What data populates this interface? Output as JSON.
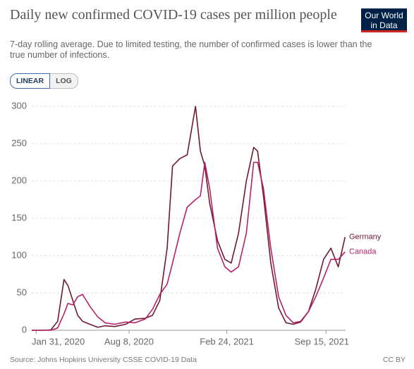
{
  "logo": "Our World in Data",
  "controls": [
    "LINEAR",
    "LOG"
  ],
  "chart_data": {
    "type": "line",
    "title": "Daily new confirmed COVID-19 cases per million people",
    "subtitle": "7-day rolling average. Due to limited testing, the number of confirmed cases is lower than the true number of infections.",
    "source": "Source: Johns Hopkins University CSSE COVID-19 Data",
    "license": "CC BY",
    "log_scale": false,
    "grid": true,
    "x": [
      "2020-01-22",
      "2020-02-15",
      "2020-03-01",
      "2020-03-15",
      "2020-03-28",
      "2020-04-05",
      "2020-04-15",
      "2020-04-25",
      "2020-05-05",
      "2020-05-20",
      "2020-06-05",
      "2020-06-20",
      "2020-07-10",
      "2020-08-01",
      "2020-08-20",
      "2020-09-10",
      "2020-09-25",
      "2020-10-10",
      "2020-10-25",
      "2020-11-05",
      "2020-11-20",
      "2020-12-05",
      "2020-12-22",
      "2021-01-01",
      "2021-01-10",
      "2021-01-20",
      "2021-02-05",
      "2021-02-20",
      "2021-03-05",
      "2021-03-20",
      "2021-04-05",
      "2021-04-20",
      "2021-04-28",
      "2021-05-10",
      "2021-05-25",
      "2021-06-10",
      "2021-06-25",
      "2021-07-10",
      "2021-07-25",
      "2021-08-10",
      "2021-08-25",
      "2021-09-10",
      "2021-09-25",
      "2021-10-10",
      "2021-10-24"
    ],
    "xlim": [
      "2020-01-22",
      "2021-10-25"
    ],
    "xticks": [
      {
        "value": "2020-01-31",
        "label": "Jan 31, 2020"
      },
      {
        "value": "2020-08-08",
        "label": "Aug 8, 2020"
      },
      {
        "value": "2021-02-24",
        "label": "Feb 24, 2021"
      },
      {
        "value": "2021-09-15",
        "label": "Sep 15, 2021"
      }
    ],
    "ylim": [
      0,
      300
    ],
    "yticks": [
      0,
      50,
      100,
      150,
      200,
      250,
      300
    ],
    "series": [
      {
        "name": "Germany",
        "color": "#6d1a2c",
        "values": [
          0,
          0,
          0.5,
          12,
          68,
          60,
          40,
          20,
          12,
          8,
          4,
          6,
          5,
          8,
          15,
          16,
          20,
          40,
          110,
          220,
          230,
          235,
          300,
          240,
          220,
          170,
          120,
          95,
          90,
          130,
          200,
          245,
          240,
          180,
          90,
          30,
          10,
          8,
          11,
          25,
          55,
          95,
          110,
          85,
          125
        ]
      },
      {
        "name": "Canada",
        "color": "#b4226a",
        "values": [
          0,
          0,
          0,
          3,
          22,
          36,
          34,
          45,
          48,
          32,
          18,
          10,
          8,
          11,
          10,
          15,
          28,
          48,
          62,
          90,
          130,
          165,
          175,
          180,
          225,
          190,
          110,
          85,
          78,
          85,
          130,
          225,
          225,
          190,
          110,
          45,
          20,
          10,
          12,
          25,
          45,
          70,
          95,
          95,
          105
        ]
      }
    ]
  }
}
